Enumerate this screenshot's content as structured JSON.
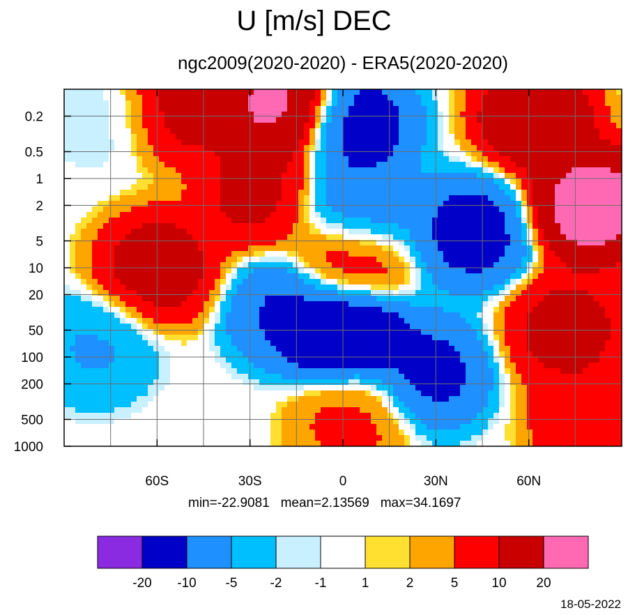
{
  "title": "U [m/s] DEC",
  "subtitle": "ngc2009(2020-2020) - ERA5(2020-2020)",
  "stats": {
    "min": "min=-22.9081",
    "mean": "mean=2.13569",
    "max": "max=34.1697"
  },
  "date": "18-05-2022",
  "chart_data": {
    "type": "heatmap",
    "title": "U [m/s] DEC",
    "subtitle": "ngc2009(2020-2020) - ERA5(2020-2020)",
    "xlabel": "",
    "ylabel": "",
    "x_ticks": [
      "60S",
      "30S",
      "0",
      "30N",
      "60N"
    ],
    "x_tick_values": [
      -60,
      -30,
      0,
      30,
      60
    ],
    "xlim": [
      -90,
      90
    ],
    "y_ticks": [
      "0.2",
      "0.5",
      "1",
      "2",
      "5",
      "10",
      "20",
      "50",
      "100",
      "200",
      "500",
      "1000"
    ],
    "y_scale": "log",
    "y_reversed": true,
    "ylim": [
      0.1,
      1000
    ],
    "contour_levels": [
      -20,
      -10,
      -5,
      -2,
      -1,
      1,
      2,
      5,
      10,
      20
    ],
    "colors": [
      "#8a2be2",
      "#0000c8",
      "#1e90ff",
      "#00bfff",
      "#c8f0ff",
      "#ffffff",
      "#ffe030",
      "#ffa500",
      "#ff0000",
      "#c80000",
      "#ff69b4"
    ],
    "min": -22.9081,
    "mean": 2.13569,
    "max": 34.1697,
    "features": [
      {
        "lat": -60,
        "p": 10,
        "value": 15
      },
      {
        "lat": -52,
        "p": 0.15,
        "value": 14
      },
      {
        "lat": -22,
        "p": 0.15,
        "value": 25
      },
      {
        "lat": -28,
        "p": 1.5,
        "value": 13
      },
      {
        "lat": -80,
        "p": 80,
        "value": -6
      },
      {
        "lat": -78,
        "p": 0.2,
        "value": -2
      },
      {
        "lat": 5,
        "p": 0.25,
        "value": -14
      },
      {
        "lat": 5,
        "p": 2.5,
        "value": -12
      },
      {
        "lat": 2,
        "p": 8,
        "value": 13
      },
      {
        "lat": 0,
        "p": 50,
        "value": -22
      },
      {
        "lat": -18,
        "p": 30,
        "value": -12
      },
      {
        "lat": 42,
        "p": 4,
        "value": -14
      },
      {
        "lat": 28,
        "p": 150,
        "value": -13
      },
      {
        "lat": 3,
        "p": 500,
        "value": 7
      },
      {
        "lat": 80,
        "p": 2,
        "value": 28
      },
      {
        "lat": 62,
        "p": 0.2,
        "value": 18
      },
      {
        "lat": 72,
        "p": 50,
        "value": 14
      },
      {
        "lat": 80,
        "p": 500,
        "value": 11
      }
    ]
  },
  "colorbar": {
    "colors": [
      "#8a2be2",
      "#0000c8",
      "#1e90ff",
      "#00bfff",
      "#c8f0ff",
      "#ffffff",
      "#ffe030",
      "#ffa500",
      "#ff0000",
      "#c80000",
      "#ff69b4"
    ],
    "labels": [
      "-20",
      "-10",
      "-5",
      "-2",
      "-1",
      "1",
      "2",
      "5",
      "10",
      "20"
    ]
  }
}
